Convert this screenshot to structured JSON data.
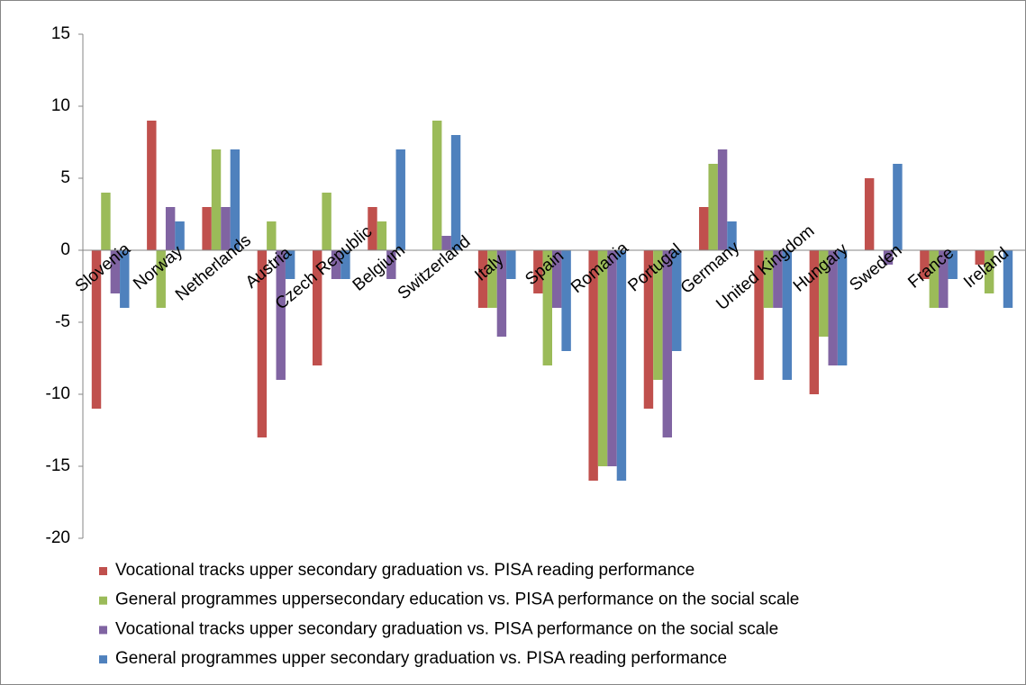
{
  "chart_data": {
    "type": "bar",
    "categories": [
      "Slovenia",
      "Norway",
      "Netherlands",
      "Austria",
      "Czech Republic",
      "Belgium",
      "Switzerland",
      "Italy",
      "Spain",
      "Romania",
      "Portugal",
      "Germany",
      "United Kingdom",
      "Hungary",
      "Sweden",
      "France",
      "Ireland"
    ],
    "series": [
      {
        "name": "Vocational tracks upper secondary graduation vs. PISA reading performance",
        "color": "#c0504d",
        "values": [
          -11,
          9,
          3,
          -13,
          -8,
          3,
          0,
          -4,
          -3,
          -16,
          -11,
          3,
          -9,
          -10,
          5,
          -2,
          -1
        ]
      },
      {
        "name": "General programmes uppersecondary education vs. PISA performance on the social scale",
        "color": "#9bbb59",
        "values": [
          4,
          -4,
          7,
          2,
          4,
          2,
          9,
          -4,
          -8,
          -15,
          -9,
          6,
          -4,
          -6,
          0,
          -4,
          -3
        ]
      },
      {
        "name": "Vocational tracks upper secondary graduation vs. PISA performance on the social scale",
        "color": "#8064a2",
        "values": [
          -3,
          3,
          3,
          -9,
          -2,
          -2,
          1,
          -6,
          -4,
          -15,
          -13,
          7,
          -4,
          -8,
          -1,
          -4,
          0
        ]
      },
      {
        "name": "General programmes upper secondary graduation vs. PISA reading performance",
        "color": "#4f81bd",
        "values": [
          -4,
          2,
          7,
          -2,
          -2,
          7,
          8,
          -2,
          -7,
          -16,
          -7,
          2,
          -9,
          -8,
          6,
          -2,
          -4
        ]
      }
    ],
    "ylim": [
      -20,
      15
    ],
    "yticks": [
      -20,
      -15,
      -10,
      -5,
      0,
      5,
      10,
      15
    ],
    "legend": "bottom"
  }
}
